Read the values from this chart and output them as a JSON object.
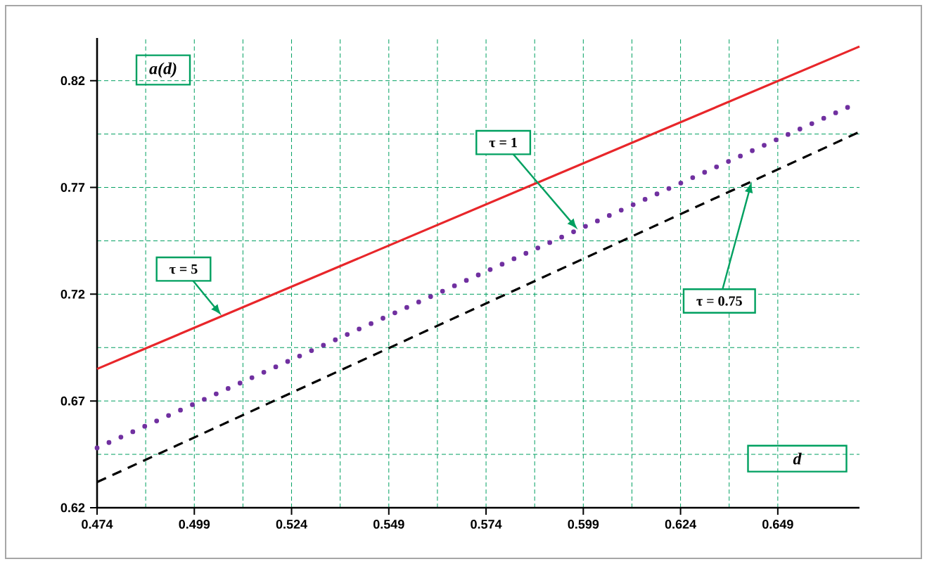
{
  "chart_data": {
    "type": "line",
    "xlabel": "d",
    "ylabel": "a(d)",
    "x": [
      0.474,
      0.67
    ],
    "series": [
      {
        "color": "#e8262a",
        "line_style": "solid",
        "values": [
          0.685,
          0.836
        ]
      },
      {
        "color": "#7030a0",
        "line_style": "dotted",
        "values": [
          0.648,
          0.81
        ]
      },
      {
        "color": "#000000",
        "line_style": "dashed",
        "values": [
          0.632,
          0.796
        ]
      }
    ],
    "xlim": [
      0.474,
      0.67
    ],
    "ylim": [
      0.62,
      0.84
    ],
    "xticks": [
      0.474,
      0.499,
      0.524,
      0.549,
      0.574,
      0.599,
      0.624,
      0.649
    ],
    "yticks": [
      0.62,
      0.67,
      0.72,
      0.77,
      0.82
    ],
    "grid": true,
    "annotations": [
      {
        "text": "τ = 5",
        "x": 0.506,
        "y": 0.71
      },
      {
        "text": "τ = 1",
        "x": 0.5976,
        "y": 0.7502
      },
      {
        "text": "τ = 0.75",
        "x": 0.6423,
        "y": 0.7728
      }
    ]
  }
}
